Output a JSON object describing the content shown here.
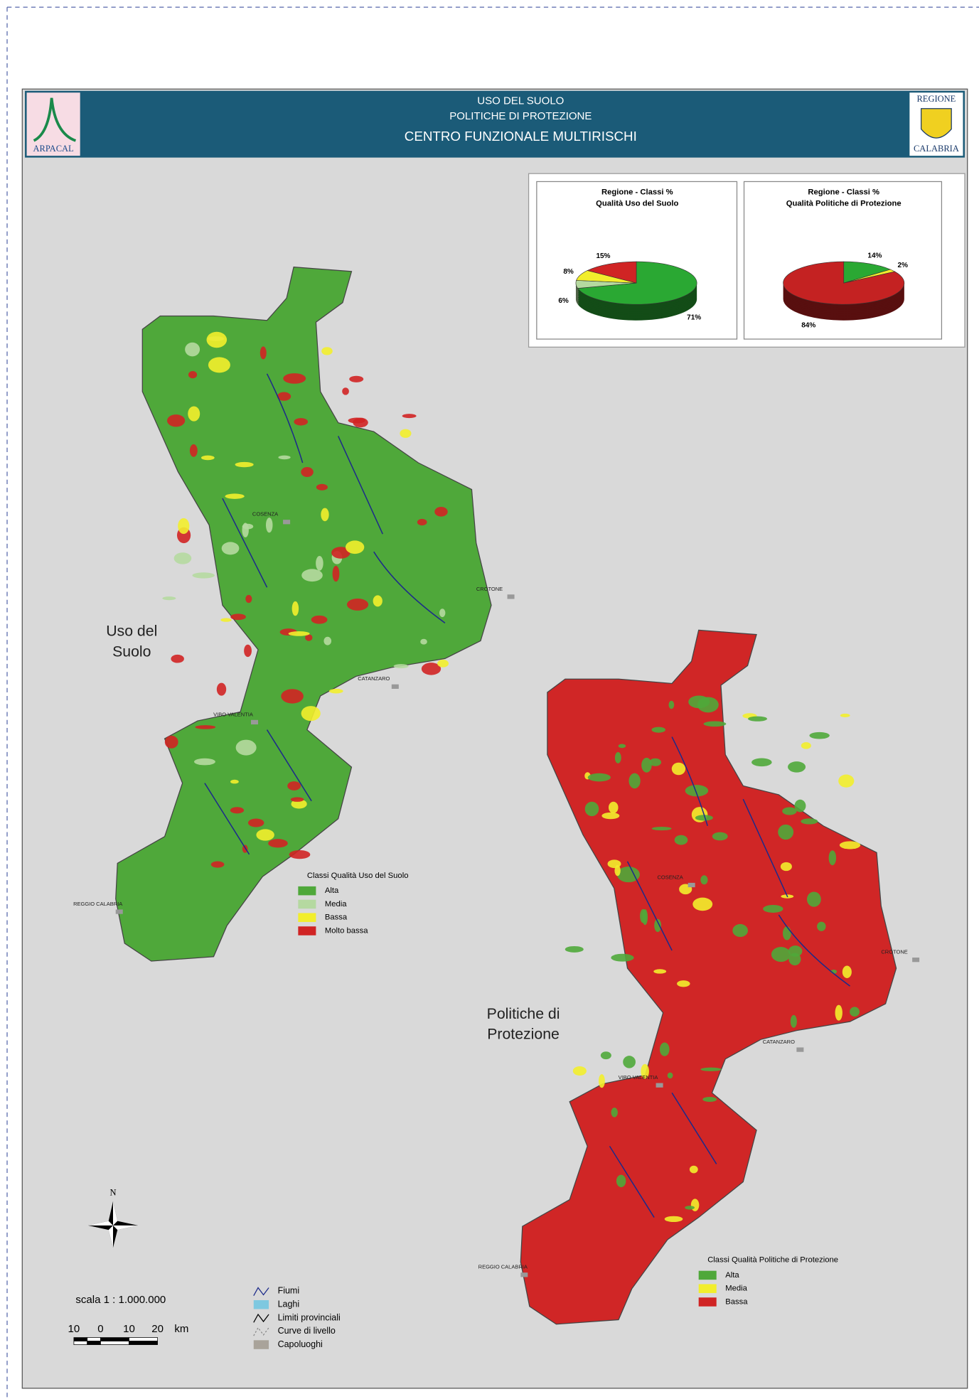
{
  "header": {
    "lines": [
      "USO DEL SUOLO",
      "POLITICHE DI PROTEZIONE",
      "CENTRO FUNZIONALE MULTIRISCHI"
    ]
  },
  "logos": {
    "left": "ARPACAL",
    "right": [
      "REGIONE",
      "CALABRIA"
    ]
  },
  "charts": [
    {
      "type": "pie",
      "title": [
        "Regione - Classi %",
        "Qualità Uso del Suolo"
      ],
      "values": [
        71,
        6,
        8,
        15
      ],
      "value_labels": [
        "71%",
        "6%",
        "8%",
        "15%"
      ],
      "colors": [
        "#2aa833",
        "#b5d9a0",
        "#f2ee2c",
        "#d02424"
      ]
    },
    {
      "type": "pie",
      "title": [
        "Regione - Classi %",
        "Qualità Politiche di Protezione"
      ],
      "values": [
        14,
        2,
        84
      ],
      "value_labels": [
        "14%",
        "2%",
        "84%"
      ],
      "colors": [
        "#2aa833",
        "#f2ee2c",
        "#c42222"
      ]
    }
  ],
  "maps": [
    {
      "title": [
        "Uso del",
        "Suolo"
      ],
      "fill": "#4fa83a",
      "cities": [
        "COSENZA",
        "CROTONE",
        "CATANZARO",
        "VIBO VALENTIA",
        "REGGIO CALABRIA"
      ],
      "legend": {
        "title": "Classi Qualità Uso del Suolo",
        "items": [
          {
            "label": "Alta",
            "color": "#4fa83a"
          },
          {
            "label": "Media",
            "color": "#b5d9a0"
          },
          {
            "label": "Bassa",
            "color": "#f2ee2c"
          },
          {
            "label": "Molto bassa",
            "color": "#d02424"
          }
        ]
      }
    },
    {
      "title": [
        "Politiche di",
        "Protezione"
      ],
      "fill": "#d02626",
      "cities": [
        "COSENZA",
        "CROTONE",
        "CATANZARO",
        "VIBO VALENTIA",
        "REGGIO CALABRIA"
      ],
      "legend": {
        "title": "Classi Qualità Politiche di Protezione",
        "items": [
          {
            "label": "Alta",
            "color": "#4fa83a"
          },
          {
            "label": "Media",
            "color": "#f2ee2c"
          },
          {
            "label": "Bassa",
            "color": "#d02424"
          }
        ]
      }
    }
  ],
  "symbols": [
    "Fiumi",
    "Laghi",
    "Limiti provinciali",
    "Curve di livello",
    "Capoluoghi"
  ],
  "scale": {
    "label": "scala 1 : 1.000.000",
    "ticks": [
      "10",
      "0",
      "10",
      "20",
      "km"
    ]
  },
  "north": "N"
}
